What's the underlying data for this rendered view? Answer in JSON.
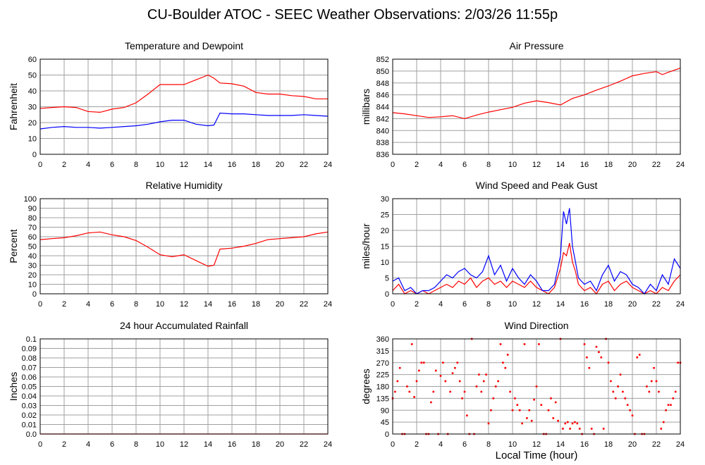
{
  "page": {
    "title": "CU-Boulder ATOC - SEEC Weather Observations: 2/03/26 11:55p",
    "xaxis_label": "Local Time (hour)"
  },
  "colors": {
    "primary": "#ff0000",
    "secondary": "#0000ff",
    "grid": "#a0a0a0",
    "frame": "#000000"
  },
  "chart_data": [
    {
      "id": "temp",
      "type": "line",
      "title": "Temperature and Dewpoint",
      "xlabel": "",
      "ylabel": "Fahrenheit",
      "xlim": [
        0,
        24
      ],
      "ylim": [
        0,
        60
      ],
      "x_ticks": [
        "0",
        "2",
        "4",
        "6",
        "8",
        "10",
        "12",
        "14",
        "16",
        "18",
        "20",
        "22",
        "24"
      ],
      "y_ticks": [
        "0",
        "10",
        "20",
        "30",
        "40",
        "50",
        "60"
      ],
      "x": [
        0,
        1,
        2,
        3,
        4,
        5,
        6,
        7,
        8,
        9,
        10,
        11,
        12,
        13,
        14,
        14.5,
        15,
        16,
        17,
        18,
        19,
        20,
        21,
        22,
        23,
        24
      ],
      "series": [
        {
          "color": "#ff0000",
          "values": [
            29,
            29.5,
            30,
            29.5,
            27,
            26.5,
            28.5,
            29.5,
            32.5,
            38,
            44,
            44,
            44,
            47,
            50,
            48,
            45,
            44.5,
            43,
            39,
            38,
            38,
            37,
            36.5,
            35,
            35
          ]
        },
        {
          "color": "#0000ff",
          "values": [
            16,
            17,
            17.5,
            17,
            17,
            16.5,
            17,
            17.5,
            18,
            19,
            20.5,
            21.5,
            21.5,
            19,
            18,
            18.5,
            26,
            25.5,
            25.5,
            25,
            24.5,
            24.5,
            24.5,
            25,
            24.5,
            24
          ]
        }
      ]
    },
    {
      "id": "pressure",
      "type": "line",
      "title": "Air Pressure",
      "xlabel": "",
      "ylabel": "millibars",
      "xlim": [
        0,
        24
      ],
      "ylim": [
        836,
        852
      ],
      "x_ticks": [
        "0",
        "2",
        "4",
        "6",
        "8",
        "10",
        "12",
        "14",
        "16",
        "18",
        "20",
        "22",
        "24"
      ],
      "y_ticks": [
        "836",
        "838",
        "840",
        "842",
        "844",
        "846",
        "848",
        "850",
        "852"
      ],
      "x": [
        0,
        1,
        2,
        3,
        4,
        5,
        6,
        7,
        8,
        9,
        10,
        11,
        12,
        13,
        14,
        15,
        16,
        17,
        18,
        19,
        20,
        21,
        22,
        22.5,
        23,
        24
      ],
      "series": [
        {
          "color": "#ff0000",
          "values": [
            843,
            842.8,
            842.5,
            842.2,
            842.3,
            842.5,
            842,
            842.6,
            843.1,
            843.5,
            843.9,
            844.6,
            845,
            844.7,
            844.3,
            845.4,
            846,
            846.8,
            847.5,
            848.3,
            849.2,
            849.6,
            849.9,
            849.4,
            849.8,
            850.5
          ]
        }
      ]
    },
    {
      "id": "rh",
      "type": "line",
      "title": "Relative Humidity",
      "xlabel": "",
      "ylabel": "Percent",
      "xlim": [
        0,
        24
      ],
      "ylim": [
        0,
        100
      ],
      "x_ticks": [
        "0",
        "2",
        "4",
        "6",
        "8",
        "10",
        "12",
        "14",
        "16",
        "18",
        "20",
        "22",
        "24"
      ],
      "y_ticks": [
        "0",
        "10",
        "20",
        "30",
        "40",
        "50",
        "60",
        "70",
        "80",
        "90",
        "100"
      ],
      "x": [
        0,
        1,
        2,
        3,
        4,
        5,
        6,
        7,
        8,
        9,
        10,
        11,
        12,
        13,
        14,
        14.5,
        15,
        16,
        17,
        18,
        19,
        20,
        21,
        22,
        23,
        24
      ],
      "series": [
        {
          "color": "#ff0000",
          "values": [
            57,
            58,
            59,
            61,
            64,
            65,
            62,
            60,
            56,
            49,
            41,
            39,
            41,
            35,
            29,
            30,
            47,
            48,
            50,
            53,
            57,
            58,
            59,
            60,
            63,
            65
          ]
        }
      ]
    },
    {
      "id": "wind",
      "type": "line",
      "title": "Wind Speed and Peak Gust",
      "xlabel": "",
      "ylabel": "miles/hour",
      "xlim": [
        0,
        24
      ],
      "ylim": [
        0,
        30
      ],
      "x_ticks": [
        "0",
        "2",
        "4",
        "6",
        "8",
        "10",
        "12",
        "14",
        "16",
        "18",
        "20",
        "22",
        "24"
      ],
      "y_ticks": [
        "0",
        "5",
        "10",
        "15",
        "20",
        "25",
        "30"
      ],
      "x": [
        0,
        0.5,
        1,
        1.5,
        2,
        2.5,
        3,
        3.5,
        4,
        4.5,
        5,
        5.5,
        6,
        6.5,
        7,
        7.5,
        8,
        8.5,
        9,
        9.5,
        10,
        10.5,
        11,
        11.5,
        12,
        12.5,
        13,
        13.5,
        14,
        14.25,
        14.5,
        14.75,
        15,
        15.25,
        15.5,
        16,
        16.5,
        17,
        17.5,
        18,
        18.5,
        19,
        19.5,
        20,
        20.5,
        21,
        21.5,
        22,
        22.5,
        23,
        23.5,
        24
      ],
      "series": [
        {
          "color": "#ff0000",
          "values": [
            1,
            3,
            0,
            1,
            0,
            1,
            0,
            1,
            2,
            3,
            2,
            4,
            3,
            5,
            2,
            4,
            5,
            3,
            4,
            2,
            4,
            3,
            2,
            4,
            2,
            1,
            0,
            2,
            8,
            13,
            12,
            16,
            10,
            7,
            3,
            1,
            2,
            0,
            3,
            4,
            1,
            3,
            4,
            2,
            1,
            0,
            1,
            0,
            2,
            1,
            4,
            6
          ]
        },
        {
          "color": "#0000ff",
          "values": [
            4,
            5,
            1,
            2,
            0,
            1,
            1,
            2,
            4,
            6,
            5,
            7,
            8,
            6,
            5,
            7,
            12,
            6,
            9,
            4,
            8,
            5,
            3,
            6,
            4,
            1,
            1,
            3,
            12,
            26,
            22,
            27,
            15,
            10,
            5,
            3,
            4,
            1,
            6,
            9,
            4,
            7,
            6,
            3,
            2,
            0,
            3,
            1,
            6,
            3,
            11,
            8
          ]
        }
      ]
    },
    {
      "id": "rain",
      "type": "line",
      "title": "24 hour Accumulated Rainfall",
      "xlabel": "",
      "ylabel": "Inches",
      "xlim": [
        0,
        24
      ],
      "ylim": [
        0,
        0.1
      ],
      "x_ticks": [
        "0",
        "2",
        "4",
        "6",
        "8",
        "10",
        "12",
        "14",
        "16",
        "18",
        "20",
        "22",
        "24"
      ],
      "y_ticks": [
        "0.0",
        "0.01",
        "0.02",
        "0.03",
        "0.04",
        "0.05",
        "0.06",
        "0.07",
        "0.08",
        "0.09",
        "0.1"
      ],
      "x": [
        0,
        24
      ],
      "series": [
        {
          "color": "#ff0000",
          "values": [
            0,
            0
          ]
        }
      ]
    },
    {
      "id": "dir",
      "type": "scatter",
      "title": "Wind Direction",
      "xlabel": "Local Time (hour)",
      "ylabel": "degrees",
      "xlim": [
        0,
        24
      ],
      "ylim": [
        0,
        360
      ],
      "x_ticks": [
        "0",
        "2",
        "4",
        "6",
        "8",
        "10",
        "12",
        "14",
        "16",
        "18",
        "20",
        "22",
        "24"
      ],
      "y_ticks": [
        "0",
        "45",
        "90",
        "135",
        "180",
        "225",
        "270",
        "315",
        "360"
      ],
      "color": "#ff0000",
      "points": [
        [
          0,
          135
        ],
        [
          0.2,
          160
        ],
        [
          0.4,
          200
        ],
        [
          0.6,
          250
        ],
        [
          0.8,
          0
        ],
        [
          1,
          0
        ],
        [
          1.2,
          180
        ],
        [
          1.4,
          160
        ],
        [
          1.6,
          340
        ],
        [
          1.8,
          140
        ],
        [
          2,
          200
        ],
        [
          2.2,
          240
        ],
        [
          2.4,
          270
        ],
        [
          2.6,
          270
        ],
        [
          2.8,
          0
        ],
        [
          3,
          0
        ],
        [
          3.2,
          120
        ],
        [
          3.4,
          160
        ],
        [
          3.6,
          240
        ],
        [
          3.8,
          0
        ],
        [
          4,
          220
        ],
        [
          4.2,
          270
        ],
        [
          4.4,
          200
        ],
        [
          4.6,
          0
        ],
        [
          4.8,
          160
        ],
        [
          5,
          230
        ],
        [
          5.2,
          250
        ],
        [
          5.4,
          270
        ],
        [
          5.6,
          200
        ],
        [
          5.8,
          135
        ],
        [
          6,
          160
        ],
        [
          6.2,
          70
        ],
        [
          6.4,
          0
        ],
        [
          6.6,
          360
        ],
        [
          6.8,
          0
        ],
        [
          7,
          180
        ],
        [
          7.2,
          225
        ],
        [
          7.4,
          160
        ],
        [
          7.6,
          200
        ],
        [
          7.8,
          225
        ],
        [
          8,
          40
        ],
        [
          8.2,
          90
        ],
        [
          8.4,
          135
        ],
        [
          8.6,
          180
        ],
        [
          8.8,
          200
        ],
        [
          9,
          340
        ],
        [
          9.2,
          270
        ],
        [
          9.4,
          250
        ],
        [
          9.6,
          300
        ],
        [
          9.8,
          160
        ],
        [
          10,
          90
        ],
        [
          10.2,
          135
        ],
        [
          10.4,
          110
        ],
        [
          10.6,
          90
        ],
        [
          10.8,
          40
        ],
        [
          11,
          340
        ],
        [
          11.2,
          60
        ],
        [
          11.4,
          90
        ],
        [
          11.6,
          50
        ],
        [
          11.8,
          130
        ],
        [
          12,
          180
        ],
        [
          12.2,
          340
        ],
        [
          12.4,
          110
        ],
        [
          12.6,
          0
        ],
        [
          12.8,
          0
        ],
        [
          13,
          90
        ],
        [
          13.2,
          135
        ],
        [
          13.4,
          60
        ],
        [
          13.6,
          120
        ],
        [
          13.8,
          50
        ],
        [
          14,
          360
        ],
        [
          14.2,
          20
        ],
        [
          14.4,
          40
        ],
        [
          14.6,
          45
        ],
        [
          14.8,
          20
        ],
        [
          15,
          40
        ],
        [
          15.2,
          45
        ],
        [
          15.4,
          40
        ],
        [
          15.6,
          20
        ],
        [
          15.8,
          0
        ],
        [
          16,
          340
        ],
        [
          16.2,
          290
        ],
        [
          16.4,
          250
        ],
        [
          16.6,
          20
        ],
        [
          16.8,
          0
        ],
        [
          17,
          330
        ],
        [
          17.2,
          310
        ],
        [
          17.4,
          290
        ],
        [
          17.6,
          20
        ],
        [
          17.8,
          360
        ],
        [
          18,
          270
        ],
        [
          18.2,
          200
        ],
        [
          18.4,
          160
        ],
        [
          18.6,
          135
        ],
        [
          18.8,
          180
        ],
        [
          19,
          225
        ],
        [
          19.2,
          160
        ],
        [
          19.4,
          135
        ],
        [
          19.6,
          110
        ],
        [
          19.8,
          90
        ],
        [
          20,
          70
        ],
        [
          20.2,
          0
        ],
        [
          20.4,
          290
        ],
        [
          20.6,
          300
        ],
        [
          20.8,
          0
        ],
        [
          21,
          0
        ],
        [
          21.2,
          180
        ],
        [
          21.4,
          160
        ],
        [
          21.6,
          200
        ],
        [
          21.8,
          250
        ],
        [
          22,
          200
        ],
        [
          22.2,
          160
        ],
        [
          22.4,
          20
        ],
        [
          22.6,
          45
        ],
        [
          22.8,
          90
        ],
        [
          23,
          110
        ],
        [
          23.2,
          110
        ],
        [
          23.4,
          135
        ],
        [
          23.6,
          160
        ],
        [
          23.8,
          270
        ],
        [
          24,
          270
        ]
      ]
    }
  ]
}
